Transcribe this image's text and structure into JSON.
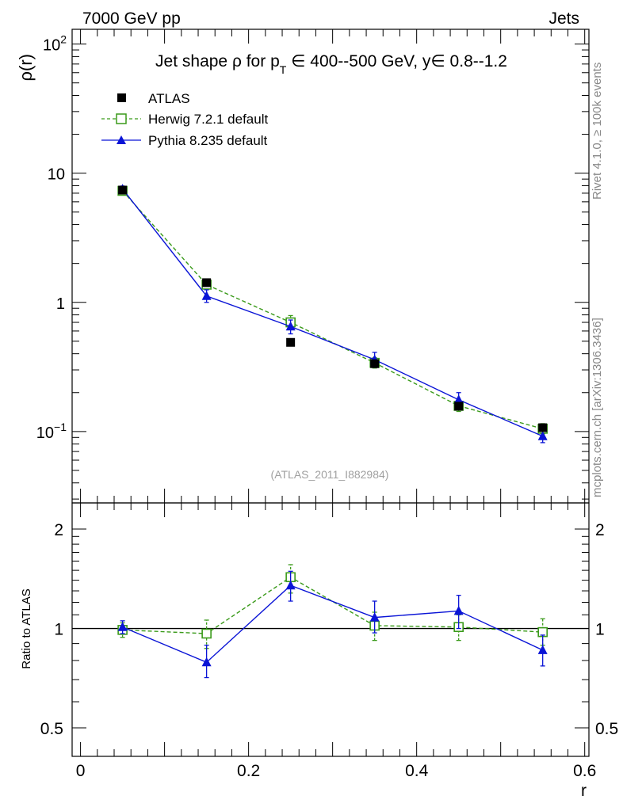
{
  "header": {
    "left": "7000 GeV pp",
    "right": "Jets"
  },
  "side": {
    "rivet": "Rivet 4.1.0, ≥ 100k events",
    "mcplots": "mcplots.cern.ch [arXiv:1306.3436]"
  },
  "colors": {
    "atlas": "#000000",
    "herwig": "#3a9a1a",
    "pythia": "#0a14d6",
    "watermark": "#a0a0a0"
  },
  "chart_data": [
    {
      "type": "scatter",
      "panel": "main",
      "title": "Jet shape ρ for p_T ∈ 400--500 GeV, y∈ 0.8--1.2",
      "title_parts": {
        "prefix": "Jet shape ρ for p",
        "sub": "T",
        "suffix": " ∈ 400--500 GeV, y∈ 0.8--1.2"
      },
      "ylabel": "ρ(r)",
      "yscale": "log",
      "ylim": [
        0.028,
        130
      ],
      "xlim": [
        -0.01,
        0.605
      ],
      "yticks": [
        {
          "value": 0.1,
          "base": "10",
          "exp": "−1"
        },
        {
          "value": 1,
          "base": "1",
          "exp": ""
        },
        {
          "value": 10,
          "base": "10",
          "exp": ""
        },
        {
          "value": 100,
          "base": "10",
          "exp": "2"
        }
      ],
      "watermark": "(ATLAS_2011_I882984)",
      "x": [
        0.05,
        0.15,
        0.25,
        0.35,
        0.45,
        0.55
      ],
      "series": [
        {
          "name": "ATLAS",
          "key": "atlas",
          "marker": "filled-square",
          "line": "none",
          "values": [
            7.4,
            1.42,
            0.49,
            0.335,
            0.157,
            0.107
          ]
        },
        {
          "name": "Herwig 7.2.1 default",
          "key": "herwig",
          "marker": "open-square",
          "line": "dashed",
          "values": [
            7.3,
            1.37,
            0.7,
            0.34,
            0.158,
            0.105
          ],
          "err_lo": [
            6.9,
            1.27,
            0.62,
            0.31,
            0.143,
            0.096
          ],
          "err_hi": [
            7.7,
            1.48,
            0.79,
            0.372,
            0.174,
            0.115
          ]
        },
        {
          "name": "Pythia 8.235 default",
          "key": "pythia",
          "marker": "filled-triangle",
          "line": "solid",
          "values": [
            7.55,
            1.12,
            0.65,
            0.36,
            0.176,
            0.092
          ],
          "err_lo": [
            7.15,
            1.0,
            0.57,
            0.32,
            0.155,
            0.082
          ],
          "err_hi": [
            7.95,
            1.25,
            0.73,
            0.41,
            0.2,
            0.103
          ]
        }
      ]
    },
    {
      "type": "scatter",
      "panel": "ratio",
      "ylabel": "Ratio to ATLAS",
      "xlabel": "r",
      "ylim": [
        0.41,
        2.4
      ],
      "yscale": "log",
      "xlim": [
        -0.01,
        0.605
      ],
      "yticks": [
        {
          "value": 0.5,
          "label": "0.5"
        },
        {
          "value": 1,
          "label": "1"
        },
        {
          "value": 2,
          "label": "2"
        }
      ],
      "xticks": [
        {
          "value": 0,
          "label": "0"
        },
        {
          "value": 0.2,
          "label": "0.2"
        },
        {
          "value": 0.4,
          "label": "0.4"
        },
        {
          "value": 0.6,
          "label": "0.6"
        }
      ],
      "reference": 1,
      "x": [
        0.05,
        0.15,
        0.25,
        0.35,
        0.45,
        0.55
      ],
      "series": [
        {
          "name": "Herwig 7.2.1 default",
          "key": "herwig",
          "marker": "open-square",
          "line": "dashed",
          "values": [
            0.99,
            0.965,
            1.43,
            1.02,
            1.01,
            0.975
          ],
          "err_lo": [
            0.94,
            0.87,
            1.28,
            0.92,
            0.92,
            0.89
          ],
          "err_hi": [
            1.04,
            1.06,
            1.56,
            1.12,
            1.1,
            1.07
          ]
        },
        {
          "name": "Pythia 8.235 default",
          "key": "pythia",
          "marker": "filled-triangle",
          "line": "solid",
          "values": [
            1.01,
            0.79,
            1.35,
            1.08,
            1.13,
            0.86
          ],
          "err_lo": [
            0.965,
            0.71,
            1.21,
            0.97,
            1.0,
            0.77
          ],
          "err_hi": [
            1.055,
            0.89,
            1.49,
            1.21,
            1.26,
            0.955
          ]
        }
      ]
    }
  ]
}
